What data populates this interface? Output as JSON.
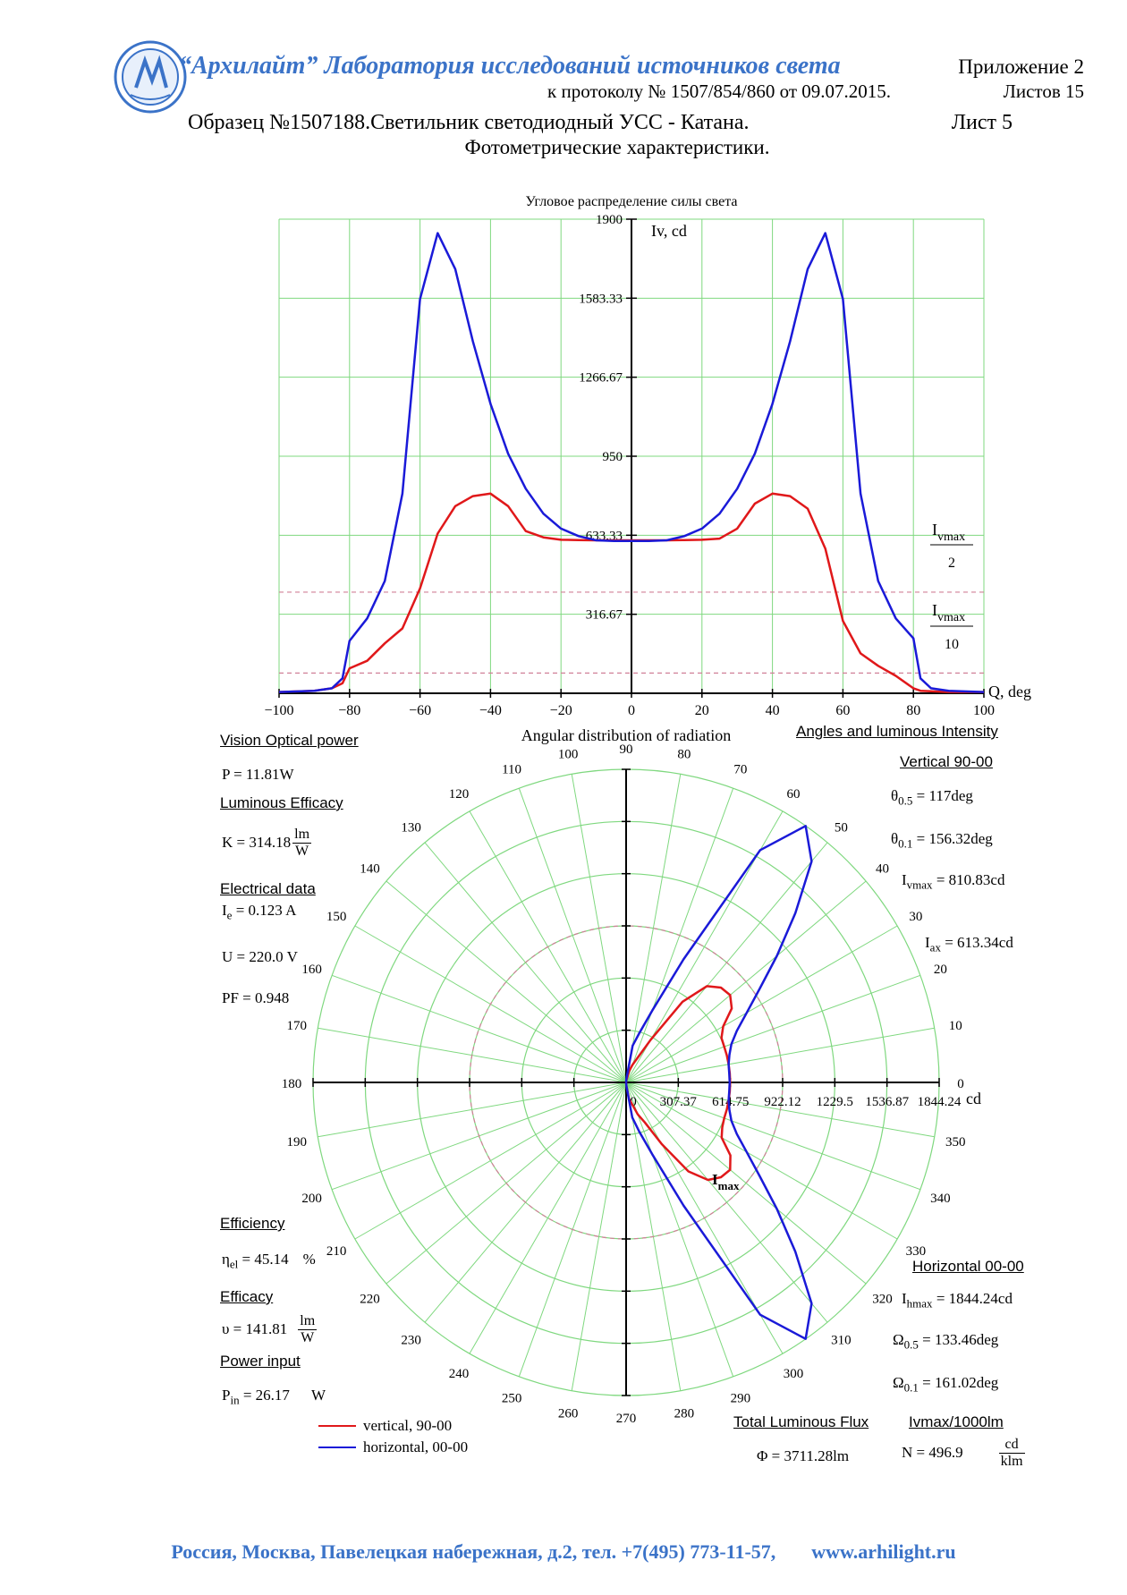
{
  "header": {
    "lab_name": "“Архилайт” Лаборатория исследований источников света",
    "appendix": "Приложение 2",
    "protocol": "к протоколу № 1507/854/860 от 09.07.2015.",
    "sheets_total": "Листов 15",
    "sample": "Образец №1507188.Светильник светодиодный УСС - Катана.",
    "sheet_no": "Лист 5",
    "subtitle": "Фотометрические характеристики."
  },
  "footer": {
    "address": "Россия, Москва, Павелецкая набережная, д.2, тел. +7(495) 773-11-57,",
    "website": "www.arhilight.ru"
  },
  "colors": {
    "brand": "#3b73c8",
    "grid": "#7fd87f",
    "vertical_curve": "#e0181a",
    "horizontal_curve": "#1a1ad8",
    "threshold": "#d08098"
  },
  "chart_data": [
    {
      "type": "line",
      "title": "Угловое распределение силы света",
      "xlabel": "Q, deg",
      "ylabel": "Iv, cd",
      "xlim": [
        -100,
        100
      ],
      "ylim": [
        0,
        1900
      ],
      "x_ticks": [
        "-100",
        "-80",
        "-60",
        "-40",
        "-20",
        "0",
        "20",
        "40",
        "60",
        "80",
        "100"
      ],
      "y_ticks": [
        "316.67",
        "633.33",
        "950",
        "1266.67",
        "1583.33",
        "1900"
      ],
      "grid": true,
      "threshold_labels": {
        "half": {
          "num": "I",
          "sub": "vmax",
          "den": "2"
        },
        "tenth": {
          "num": "I",
          "sub": "vmax",
          "den": "10"
        }
      },
      "thresholds": [
        405.4,
        81.1
      ],
      "x": [
        -100,
        -90,
        -85,
        -82,
        -80,
        -75,
        -70,
        -65,
        -60,
        -55,
        -50,
        -45,
        -40,
        -35,
        -30,
        -25,
        -20,
        -15,
        -10,
        -5,
        0,
        5,
        10,
        15,
        20,
        25,
        30,
        35,
        40,
        45,
        50,
        55,
        60,
        65,
        70,
        75,
        80,
        82,
        85,
        90,
        100
      ],
      "series": [
        {
          "name": "vertical, 90-00",
          "color": "#e0181a",
          "values": [
            5,
            10,
            20,
            40,
            100,
            130,
            200,
            260,
            420,
            640,
            750,
            790,
            800,
            750,
            650,
            625,
            615,
            614,
            613,
            613,
            613,
            613,
            613,
            614,
            615,
            620,
            660,
            760,
            800,
            790,
            740,
            580,
            290,
            160,
            110,
            70,
            20,
            10,
            8,
            5,
            5
          ]
        },
        {
          "name": "horizontal, 00-00",
          "color": "#1a1ad8",
          "values": [
            5,
            10,
            20,
            60,
            210,
            300,
            450,
            800,
            1580,
            1844,
            1700,
            1410,
            1160,
            960,
            820,
            720,
            660,
            630,
            613,
            610,
            610,
            610,
            613,
            630,
            660,
            720,
            820,
            960,
            1160,
            1410,
            1700,
            1844,
            1580,
            800,
            450,
            300,
            220,
            60,
            20,
            10,
            5
          ]
        }
      ]
    },
    {
      "type": "polar",
      "title": "Angular distribution of radiation",
      "radial_unit": "cd",
      "radial_ticks": [
        "0",
        "307.37",
        "614.75",
        "922.12",
        "1229.5",
        "1536.87",
        "1844.24"
      ],
      "rmax": 1844.24,
      "angle_labels": [
        "0",
        "10",
        "20",
        "30",
        "40",
        "50",
        "60",
        "70",
        "80",
        "90",
        "100",
        "110",
        "120",
        "130",
        "140",
        "150",
        "160",
        "170",
        "180",
        "190",
        "200",
        "210",
        "220",
        "230",
        "240",
        "250",
        "260",
        "270",
        "280",
        "290",
        "300",
        "310",
        "320",
        "330",
        "340",
        "350"
      ],
      "imax_label": {
        "main": "I",
        "sub": "max"
      },
      "threshold_radius": 922.12,
      "angles": [
        -90,
        -85,
        -80,
        -75,
        -70,
        -65,
        -60,
        -55,
        -50,
        -45,
        -40,
        -35,
        -30,
        -25,
        -20,
        -15,
        -10,
        -5,
        0,
        5,
        10,
        15,
        20,
        25,
        30,
        35,
        40,
        45,
        50,
        55,
        60,
        65,
        70,
        75,
        80,
        85,
        90
      ],
      "series": [
        {
          "name": "vertical, 90-00",
          "color": "#e0181a",
          "values": [
            0,
            20,
            100,
            130,
            200,
            260,
            420,
            640,
            750,
            790,
            800,
            750,
            650,
            625,
            615,
            614,
            613,
            613,
            613,
            613,
            613,
            614,
            615,
            620,
            660,
            760,
            800,
            790,
            740,
            580,
            290,
            160,
            110,
            70,
            20,
            10,
            0
          ]
        },
        {
          "name": "horizontal, 00-00",
          "color": "#1a1ad8",
          "values": [
            0,
            20,
            210,
            300,
            450,
            800,
            1580,
            1844,
            1700,
            1410,
            1160,
            960,
            820,
            720,
            660,
            630,
            613,
            610,
            610,
            610,
            613,
            630,
            660,
            720,
            820,
            960,
            1160,
            1410,
            1700,
            1844,
            1580,
            800,
            450,
            300,
            220,
            20,
            0
          ]
        }
      ]
    }
  ],
  "params": {
    "vision_optical_power": {
      "heading": "Vision Optical power",
      "label": "P = ",
      "value": "11.81W"
    },
    "luminous_efficacy": {
      "heading": "Luminous Efficacy",
      "label": "K = ",
      "value": "314.18",
      "unit_num": "lm",
      "unit_den": "W"
    },
    "electrical": {
      "heading": "Electrical data",
      "current": {
        "label": "I",
        "sub": "e",
        "value": " = 0.123 A"
      },
      "voltage": {
        "label": "U = ",
        "value": "220.0 V"
      },
      "pf": {
        "label": "PF = ",
        "value": "0.948"
      }
    },
    "efficiency": {
      "heading": "Efficiency",
      "label": "η",
      "sub": "el",
      "value": " = 45.14",
      "unit": "%"
    },
    "efficacy": {
      "heading": "Efficacy",
      "label": "υ = ",
      "value": "141.81",
      "unit_num": "lm",
      "unit_den": "W"
    },
    "power_input": {
      "heading": "Power input",
      "label": "P",
      "sub": "in",
      "value": " = 26.17",
      "unit": "W"
    },
    "angles_intensity": {
      "heading": "Angles and luminous Intensity",
      "vertical_heading": "Vertical 90-00",
      "theta05": {
        "label": "θ",
        "sub": "0.5",
        "value": " = 117deg"
      },
      "theta01": {
        "label": "θ",
        "sub": "0.1",
        "value": " = 156.32deg"
      },
      "ivmax": {
        "label": "I",
        "sub": "vmax",
        "value": " = 810.83cd"
      },
      "iax": {
        "label": "I",
        "sub": "ax",
        "value": " = 613.34cd"
      }
    },
    "horizontal": {
      "heading": "Horizontal 00-00",
      "ihmax": {
        "label": "I",
        "sub": "hmax",
        "value": " = 1844.24cd"
      },
      "omega05": {
        "label": "Ω",
        "sub": "0.5",
        "value": " = 133.46deg"
      },
      "omega01": {
        "label": "Ω",
        "sub": "0.1",
        "value": " = 161.02deg"
      }
    },
    "flux": {
      "heading": "Total Luminous Flux",
      "label": "Φ = ",
      "value": "3711.28lm"
    },
    "ivmax_per_klm": {
      "heading": "Ivmax/1000lm",
      "label": "N = ",
      "value": "496.9",
      "unit_num": "cd",
      "unit_den": "klm"
    }
  },
  "legend": [
    {
      "label": "vertical, 90-00",
      "color": "#e0181a"
    },
    {
      "label": "horizontal, 00-00",
      "color": "#1a1ad8"
    }
  ]
}
